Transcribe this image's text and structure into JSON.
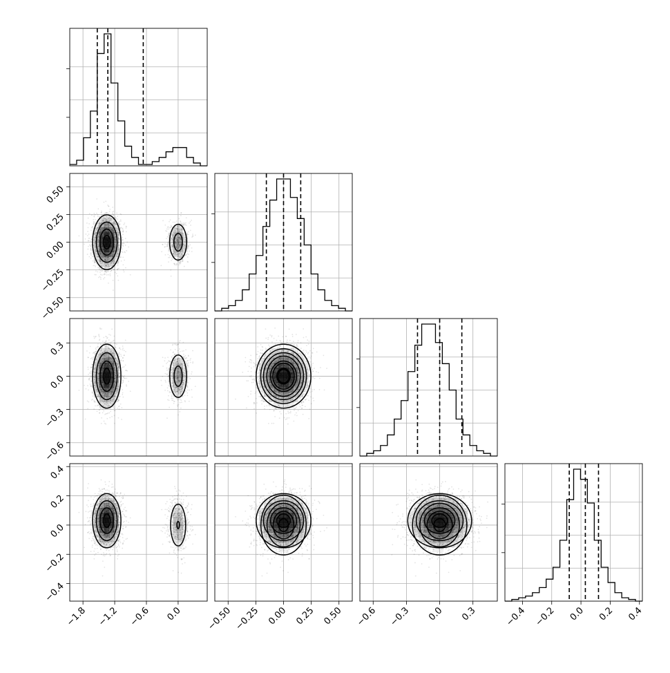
{
  "chart_data": {
    "type": "corner",
    "title": "",
    "variables": [
      {
        "range": [
          -2.05,
          0.55
        ],
        "ticks": [
          -1.8,
          -1.2,
          -0.6,
          0.0
        ],
        "tick_labels": [
          "−1.8",
          "−1.2",
          "−0.6",
          "0.0"
        ]
      },
      {
        "range": [
          -0.62,
          0.62
        ],
        "ticks": [
          -0.5,
          -0.25,
          0.0,
          0.25,
          0.5
        ],
        "tick_labels": [
          "−0.50",
          "−0.25",
          "0.00",
          "0.25",
          "0.50"
        ]
      },
      {
        "range": [
          -0.72,
          0.52
        ],
        "ticks": [
          -0.6,
          -0.3,
          0.0,
          0.3
        ],
        "tick_labels": [
          "−0.6",
          "−0.3",
          "0.0",
          "0.3"
        ]
      },
      {
        "range": [
          -0.52,
          0.42
        ],
        "ticks": [
          -0.4,
          -0.2,
          0.0,
          0.2,
          0.4
        ],
        "tick_labels": [
          "−0.4",
          "−0.2",
          "0.0",
          "0.2",
          "0.4"
        ]
      }
    ],
    "diagonal_histograms": [
      {
        "bin_edges": [
          -2.05,
          -1.92,
          -1.79,
          -1.66,
          -1.53,
          -1.4,
          -1.27,
          -1.14,
          -1.01,
          -0.88,
          -0.75,
          -0.62,
          -0.49,
          -0.36,
          -0.23,
          -0.1,
          0.03,
          0.16,
          0.29,
          0.42,
          0.55
        ],
        "counts": [
          1,
          4,
          20,
          39,
          80,
          94,
          59,
          32,
          14,
          6,
          1,
          1,
          3,
          6,
          10,
          13,
          13,
          6,
          2,
          0
        ],
        "quantiles": [
          -1.53,
          -1.33,
          -0.66
        ]
      },
      {
        "bin_edges": [
          -0.62,
          -0.558,
          -0.496,
          -0.434,
          -0.372,
          -0.31,
          -0.248,
          -0.186,
          -0.124,
          -0.062,
          0.0,
          0.062,
          0.124,
          0.186,
          0.248,
          0.31,
          0.372,
          0.434,
          0.496,
          0.558,
          0.62
        ],
        "counts": [
          0,
          1,
          2,
          4,
          8,
          14,
          21,
          32,
          42,
          50,
          50,
          43,
          35,
          25,
          14,
          8,
          4,
          2,
          1,
          0
        ],
        "quantiles": [
          -0.155,
          0.0,
          0.155
        ]
      },
      {
        "bin_edges": [
          -0.72,
          -0.658,
          -0.596,
          -0.534,
          -0.472,
          -0.41,
          -0.348,
          -0.286,
          -0.224,
          -0.162,
          -0.1,
          -0.038,
          0.024,
          0.086,
          0.148,
          0.21,
          0.272,
          0.334,
          0.396,
          0.458,
          0.52
        ],
        "counts": [
          0,
          1,
          2,
          4,
          8,
          14,
          21,
          32,
          42,
          50,
          50,
          43,
          35,
          25,
          14,
          8,
          4,
          2,
          1,
          0
        ],
        "quantiles": [
          -0.2,
          0.0,
          0.2
        ]
      },
      {
        "bin_edges": [
          -0.52,
          -0.473,
          -0.426,
          -0.379,
          -0.332,
          -0.285,
          -0.238,
          -0.191,
          -0.144,
          -0.097,
          -0.05,
          -0.003,
          0.044,
          0.091,
          0.138,
          0.185,
          0.232,
          0.279,
          0.326,
          0.373,
          0.42
        ],
        "counts": [
          0,
          1,
          2,
          3,
          5,
          8,
          13,
          20,
          36,
          60,
          78,
          72,
          58,
          36,
          20,
          11,
          5,
          2,
          1,
          0
        ],
        "quantiles": [
          -0.08,
          0.03,
          0.12
        ]
      }
    ],
    "clusters": [
      {
        "means": [
          -1.35,
          0.0,
          0.0,
          0.03
        ],
        "sds": [
          0.13,
          0.12,
          0.14,
          0.09
        ],
        "fraction": 0.78
      },
      {
        "means": [
          0.0,
          0.0,
          0.0,
          0.0
        ],
        "sds": [
          0.1,
          0.1,
          0.12,
          0.1
        ],
        "fraction": 0.22
      }
    ],
    "grid": true
  }
}
